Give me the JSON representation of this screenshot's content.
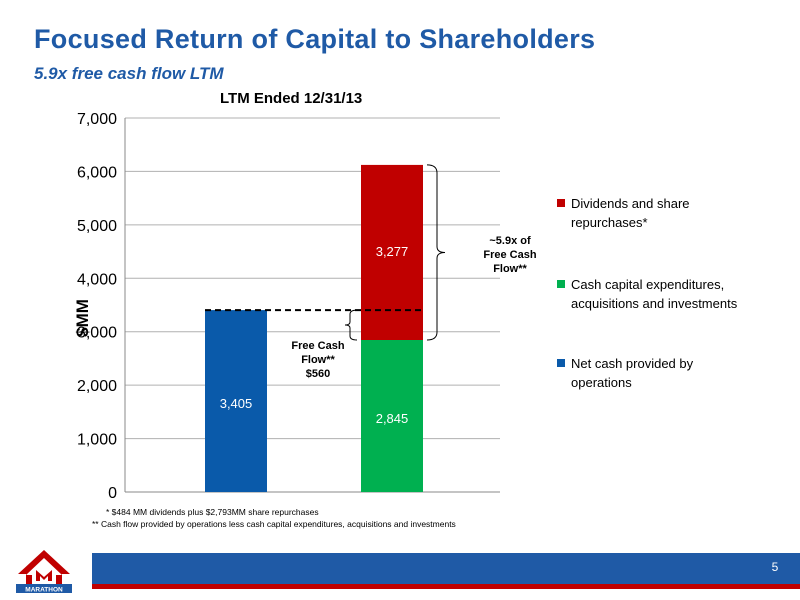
{
  "slide": {
    "title": "Focused Return of Capital to Shareholders",
    "subtitle": "5.9x free cash flow LTM",
    "page_number": "5"
  },
  "chart_data": {
    "type": "bar",
    "title": "LTM Ended 12/31/13",
    "ylabel": "$MM",
    "ylim": [
      0,
      7000
    ],
    "y_ticks": [
      "0",
      "1,000",
      "2,000",
      "3,000",
      "4,000",
      "5,000",
      "6,000",
      "7,000"
    ],
    "grid": true,
    "legend_position": "right",
    "series": [
      {
        "name": "Net cash provided by operations",
        "color": "#0a5aaa",
        "values": [
          3405,
          0
        ],
        "labels": [
          "3,405",
          ""
        ]
      },
      {
        "name": "Cash capital expenditures, acquisitions and investments",
        "color": "#00b050",
        "values": [
          0,
          2845
        ],
        "labels": [
          "",
          "2,845"
        ]
      },
      {
        "name": "Dividends and share repurchases*",
        "color": "#c00000",
        "values": [
          0,
          3277
        ],
        "labels": [
          "",
          "3,277"
        ]
      }
    ],
    "annotations": {
      "free_cash_flow": [
        "Free Cash",
        "Flow**",
        "$560"
      ],
      "multiple": [
        "~5.9x of",
        "Free Cash",
        "Flow**"
      ]
    }
  },
  "legend": [
    {
      "label_lines": [
        "Dividends and share",
        "repurchases*"
      ],
      "color": "#c00000"
    },
    {
      "label_lines": [
        "Cash capital expenditures,",
        "acquisitions and investments"
      ],
      "color": "#00b050"
    },
    {
      "label_lines": [
        "Net cash provided by",
        "operations"
      ],
      "color": "#0a5aaa"
    }
  ],
  "footnotes": [
    "* $484 MM dividends plus $2,793MM share repurchases",
    "** Cash flow provided by operations less cash capital expenditures, acquisitions and investments"
  ],
  "logo": {
    "text": "MARATHON",
    "colors": [
      "#c00000",
      "#1f5aa6"
    ]
  }
}
